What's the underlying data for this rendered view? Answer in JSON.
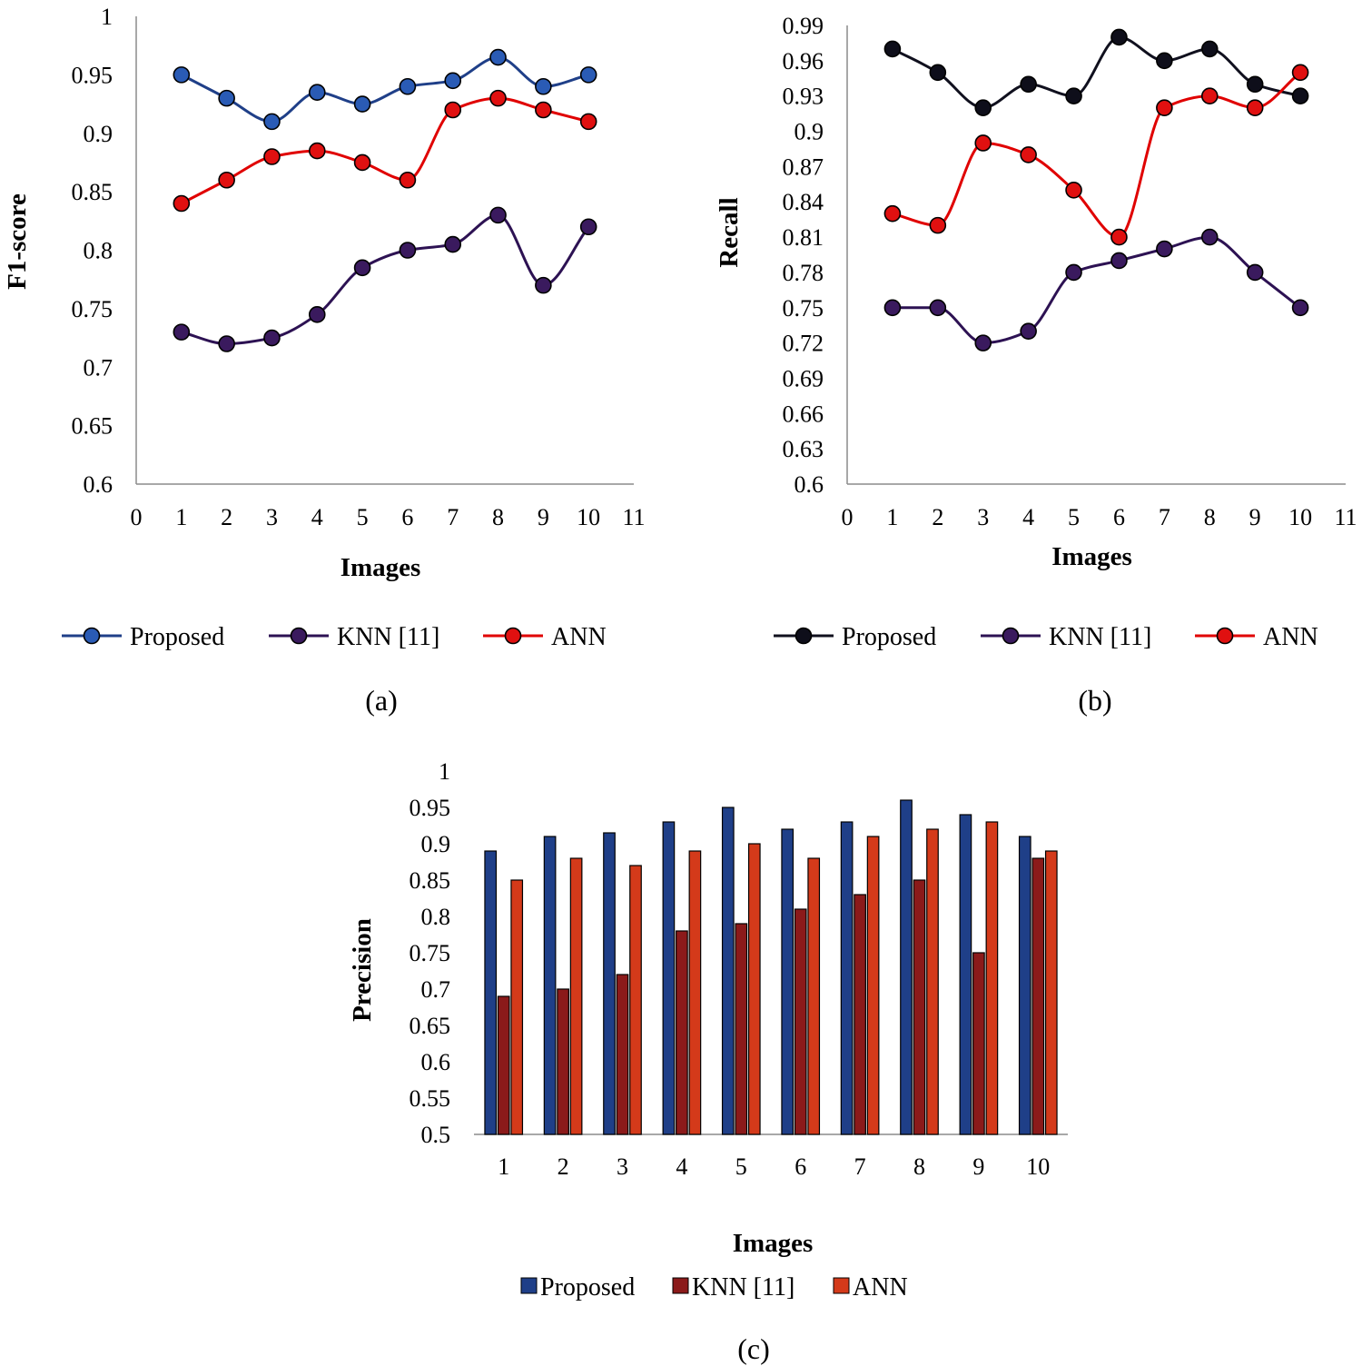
{
  "chart_data": [
    {
      "id": "a",
      "type": "line",
      "caption": "(a)",
      "xlabel": "Images",
      "ylabel": "F1-score",
      "xlim": [
        0,
        11
      ],
      "ylim": [
        0.6,
        1
      ],
      "yticks": [
        "0.6",
        "0.65",
        "0.7",
        "0.75",
        "0.8",
        "0.85",
        "0.9",
        "0.95",
        "1"
      ],
      "xticks": [
        "0",
        "1",
        "2",
        "3",
        "4",
        "5",
        "6",
        "7",
        "8",
        "9",
        "10",
        "11"
      ],
      "x": [
        1,
        2,
        3,
        4,
        5,
        6,
        7,
        8,
        9,
        10
      ],
      "grid": false,
      "legend_position": "bottom",
      "series": [
        {
          "name": "Proposed",
          "color": "#1f3f88",
          "values": [
            0.95,
            0.93,
            0.91,
            0.935,
            0.925,
            0.94,
            0.945,
            0.965,
            0.94,
            0.95
          ]
        },
        {
          "name": "KNN [11]",
          "color": "#2d1253",
          "values": [
            0.73,
            0.72,
            0.725,
            0.745,
            0.785,
            0.8,
            0.805,
            0.83,
            0.77,
            0.82
          ]
        },
        {
          "name": "ANN",
          "color": "#e00000",
          "values": [
            0.84,
            0.86,
            0.88,
            0.885,
            0.875,
            0.86,
            0.92,
            0.93,
            0.92,
            0.91
          ]
        }
      ]
    },
    {
      "id": "b",
      "type": "line",
      "caption": "(b)",
      "xlabel": "Images",
      "ylabel": "Recall",
      "xlim": [
        0,
        11
      ],
      "ylim": [
        0.6,
        0.99
      ],
      "yticks": [
        "0.6",
        "0.63",
        "0.66",
        "0.69",
        "0.72",
        "0.75",
        "0.78",
        "0.81",
        "0.84",
        "0.87",
        "0.9",
        "0.93",
        "0.96",
        "0.99"
      ],
      "xticks": [
        "0",
        "1",
        "2",
        "3",
        "4",
        "5",
        "6",
        "7",
        "8",
        "9",
        "10",
        "11"
      ],
      "x": [
        1,
        2,
        3,
        4,
        5,
        6,
        7,
        8,
        9,
        10
      ],
      "grid": false,
      "legend_position": "bottom",
      "series": [
        {
          "name": "Proposed",
          "color": "#10101e",
          "values": [
            0.97,
            0.95,
            0.92,
            0.94,
            0.93,
            0.98,
            0.96,
            0.97,
            0.94,
            0.93
          ]
        },
        {
          "name": "KNN [11]",
          "color": "#2d1253",
          "values": [
            0.75,
            0.75,
            0.72,
            0.73,
            0.78,
            0.79,
            0.8,
            0.81,
            0.78,
            0.75
          ]
        },
        {
          "name": "ANN",
          "color": "#e00000",
          "values": [
            0.83,
            0.82,
            0.89,
            0.88,
            0.85,
            0.81,
            0.92,
            0.93,
            0.92,
            0.95
          ]
        }
      ]
    },
    {
      "id": "c",
      "type": "bar",
      "caption": "(c)",
      "xlabel": "Images",
      "ylabel": "Precision",
      "ylim": [
        0.5,
        1
      ],
      "yticks": [
        "0.5",
        "0.55",
        "0.6",
        "0.65",
        "0.7",
        "0.75",
        "0.8",
        "0.85",
        "0.9",
        "0.95",
        "1"
      ],
      "categories": [
        "1",
        "2",
        "3",
        "4",
        "5",
        "6",
        "7",
        "8",
        "9",
        "10"
      ],
      "grid": false,
      "legend_position": "bottom",
      "series": [
        {
          "name": "Proposed",
          "color": "#1f3f88",
          "values": [
            0.89,
            0.91,
            0.915,
            0.93,
            0.95,
            0.92,
            0.93,
            0.96,
            0.94,
            0.91
          ]
        },
        {
          "name": "KNN [11]",
          "color": "#8b1a1a",
          "values": [
            0.69,
            0.7,
            0.72,
            0.78,
            0.79,
            0.81,
            0.83,
            0.85,
            0.75,
            0.88
          ]
        },
        {
          "name": "ANN",
          "color": "#d43a1a",
          "values": [
            0.85,
            0.88,
            0.87,
            0.89,
            0.9,
            0.88,
            0.91,
            0.92,
            0.93,
            0.89
          ]
        }
      ]
    }
  ]
}
